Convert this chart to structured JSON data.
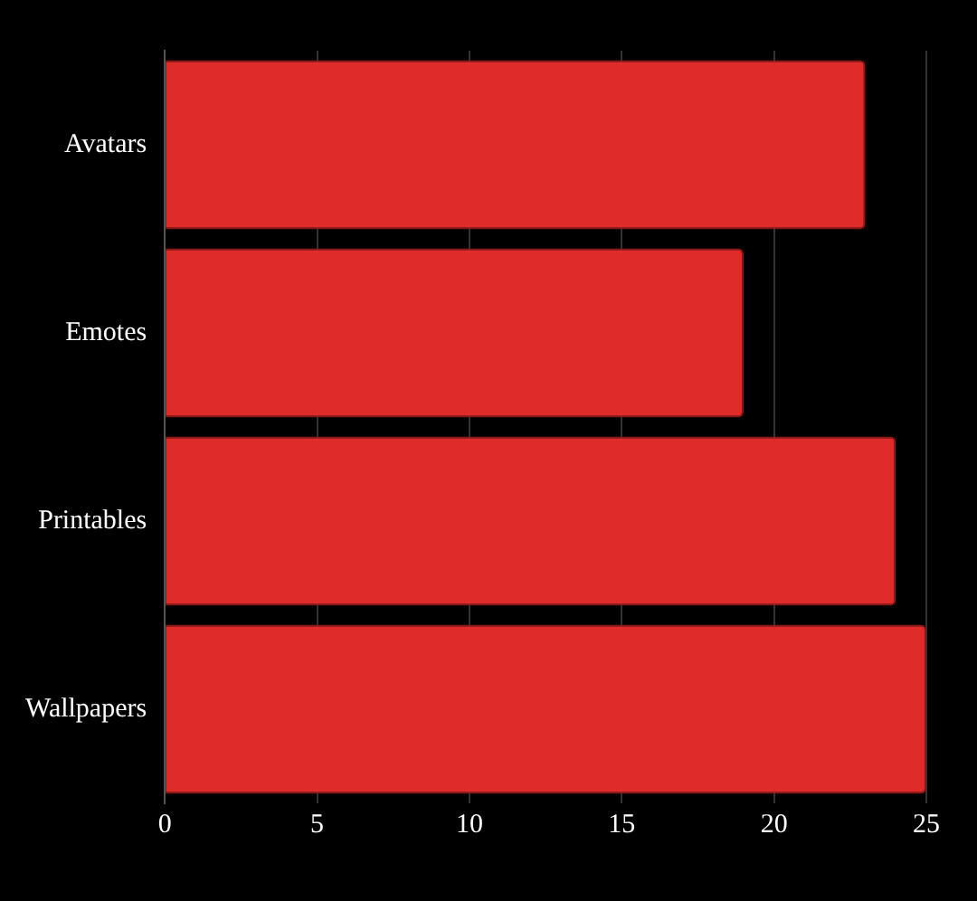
{
  "chart_data": {
    "type": "bar",
    "orientation": "horizontal",
    "categories": [
      "Avatars",
      "Emotes",
      "Printables",
      "Wallpapers"
    ],
    "values": [
      23,
      19,
      24,
      25
    ],
    "color": "#e02b2b",
    "xlim": [
      0,
      25
    ],
    "xticks": [
      0,
      5,
      10,
      15,
      20,
      25
    ],
    "grid": "x",
    "legend": false
  }
}
